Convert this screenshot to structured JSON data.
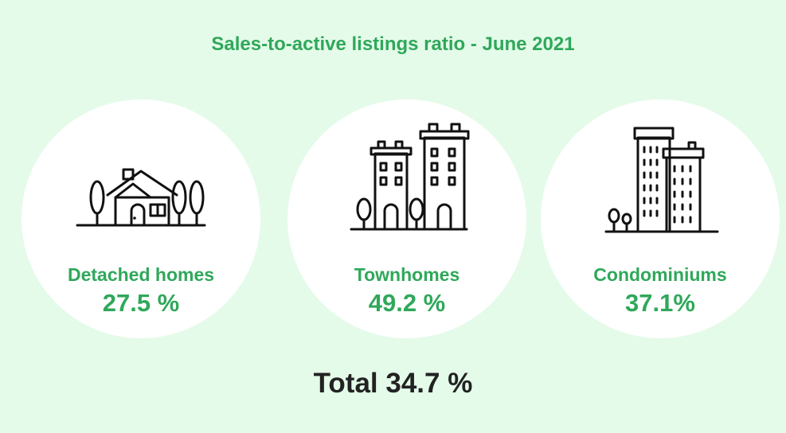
{
  "chart_data": {
    "type": "table",
    "title": "Sales-to-active listings ratio - June 2021",
    "categories": [
      "Detached homes",
      "Townhomes",
      "Condominiums"
    ],
    "values": [
      27.5,
      49.2,
      37.1
    ],
    "value_labels": [
      "27.5 %",
      "49.2 %",
      "37.1%"
    ],
    "total_label": "Total 34.7 %",
    "total_value": 34.7,
    "unit": "%"
  },
  "items": [
    {
      "label": "Detached homes",
      "value": "27.5 %",
      "icon": "house-icon"
    },
    {
      "label": "Townhomes",
      "value": "49.2 %",
      "icon": "townhouse-icon"
    },
    {
      "label": "Condominiums",
      "value": "37.1%",
      "icon": "condo-tower-icon"
    }
  ],
  "colors": {
    "background": "#e5fbea",
    "accent": "#2fa85a",
    "total_text": "#222222"
  }
}
